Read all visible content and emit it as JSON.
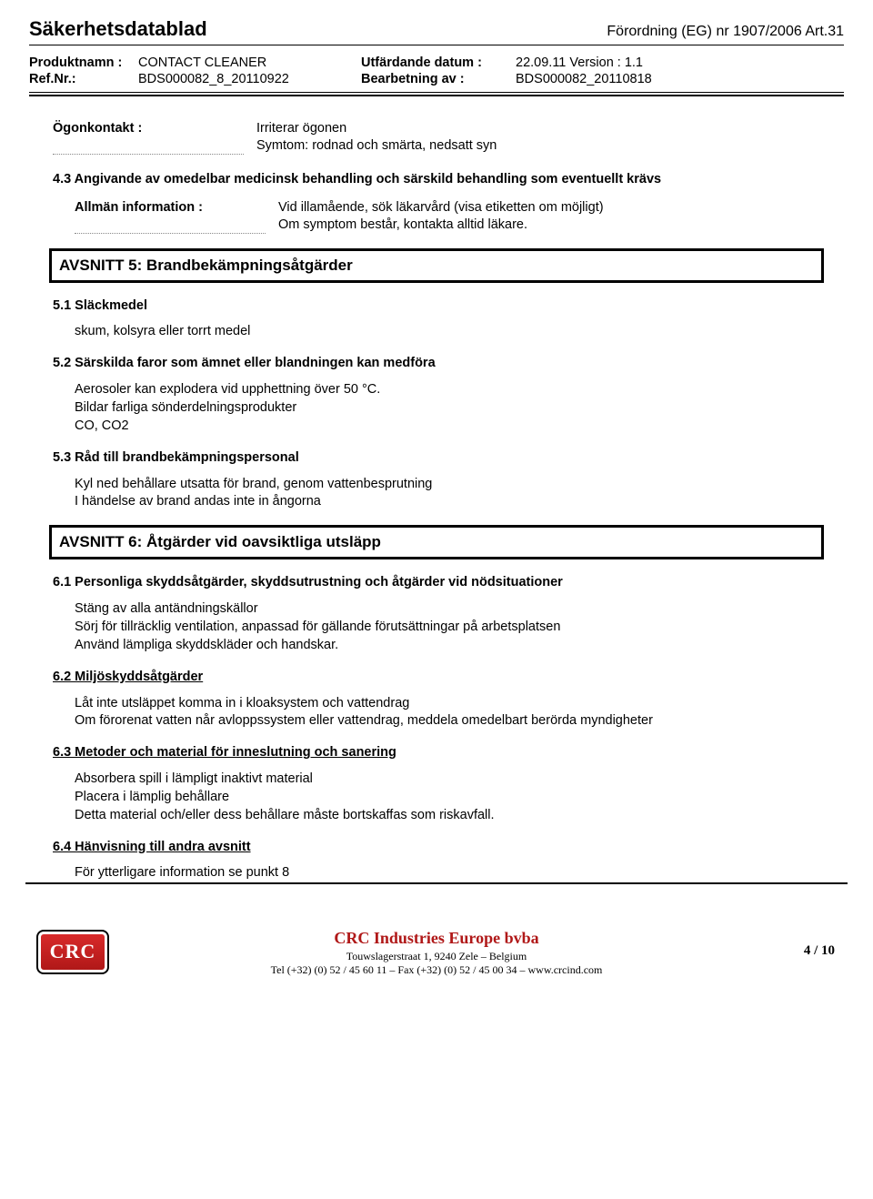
{
  "header": {
    "title": "Säkerhetsdatablad",
    "regulation": "Förordning (EG) nr 1907/2006 Art.31"
  },
  "meta": {
    "product_label": "Produktnamn :",
    "product_value": "CONTACT CLEANER",
    "ref_label": "Ref.Nr.:",
    "ref_value": "BDS000082_8_20110922",
    "issue_label": "Utfärdande datum :",
    "issue_value": "22.09.11 Version : 1.1",
    "rev_label": "Bearbetning av :",
    "rev_value": "BDS000082_20110818"
  },
  "eye": {
    "label": "Ögonkontakt :",
    "line1": "Irriterar ögonen",
    "line2": "Symtom: rodnad och smärta, nedsatt syn"
  },
  "s43_heading": "4.3 Angivande av omedelbar medicinsk behandling och särskild behandling som eventuellt krävs",
  "geninfo": {
    "label": "Allmän information :",
    "line1": "Vid illamående, sök läkarvård (visa etiketten om möjligt)",
    "line2": "Om symptom består, kontakta alltid läkare."
  },
  "section5": {
    "title": "AVSNITT 5: Brandbekämpningsåtgärder",
    "s51": "5.1 Släckmedel",
    "s51_body": "skum, kolsyra eller torrt medel",
    "s52": "5.2 Särskilda faror som ämnet eller blandningen kan medföra",
    "s52_l1": "Aerosoler kan explodera vid upphettning över 50 °C.",
    "s52_l2": "Bildar farliga sönderdelningsprodukter",
    "s52_l3": "CO, CO2",
    "s53": "5.3 Råd till brandbekämpningspersonal",
    "s53_l1": "Kyl ned behållare utsatta för brand, genom vattenbesprutning",
    "s53_l2": "I händelse av brand andas inte in ångorna"
  },
  "section6": {
    "title": "AVSNITT 6: Åtgärder vid oavsiktliga utsläpp",
    "s61": "6.1 Personliga skyddsåtgärder, skyddsutrustning och åtgärder vid nödsituationer",
    "s61_l1": "Stäng av alla antändningskällor",
    "s61_l2": "Sörj för tillräcklig ventilation, anpassad för gällande förutsättningar på arbetsplatsen",
    "s61_l3": "Använd lämpliga skyddskläder och handskar.",
    "s62": "6.2 Miljöskyddsåtgärder",
    "s62_l1": "Låt inte utsläppet komma in i kloaksystem och vattendrag",
    "s62_l2": "Om förorenat vatten når avloppssystem eller vattendrag, meddela omedelbart berörda myndigheter",
    "s63": "6.3 Metoder och material för inneslutning och sanering",
    "s63_l1": "Absorbera spill i lämpligt inaktivt material",
    "s63_l2": "Placera i lämplig behållare",
    "s63_l3": "Detta material och/eller dess behållare måste bortskaffas som riskavfall.",
    "s64": "6.4 Hänvisning till andra avsnitt",
    "s64_l1": "För ytterligare information se punkt 8"
  },
  "footer": {
    "logo_text": "CRC",
    "company": "CRC Industries Europe bvba",
    "addr": "Touwslagerstraat 1, 9240 Zele – Belgium",
    "contact": "Tel (+32) (0) 52 / 45 60 11 – Fax (+32) (0) 52 / 45 00 34 – www.crcind.com",
    "page": "4 / 10"
  }
}
